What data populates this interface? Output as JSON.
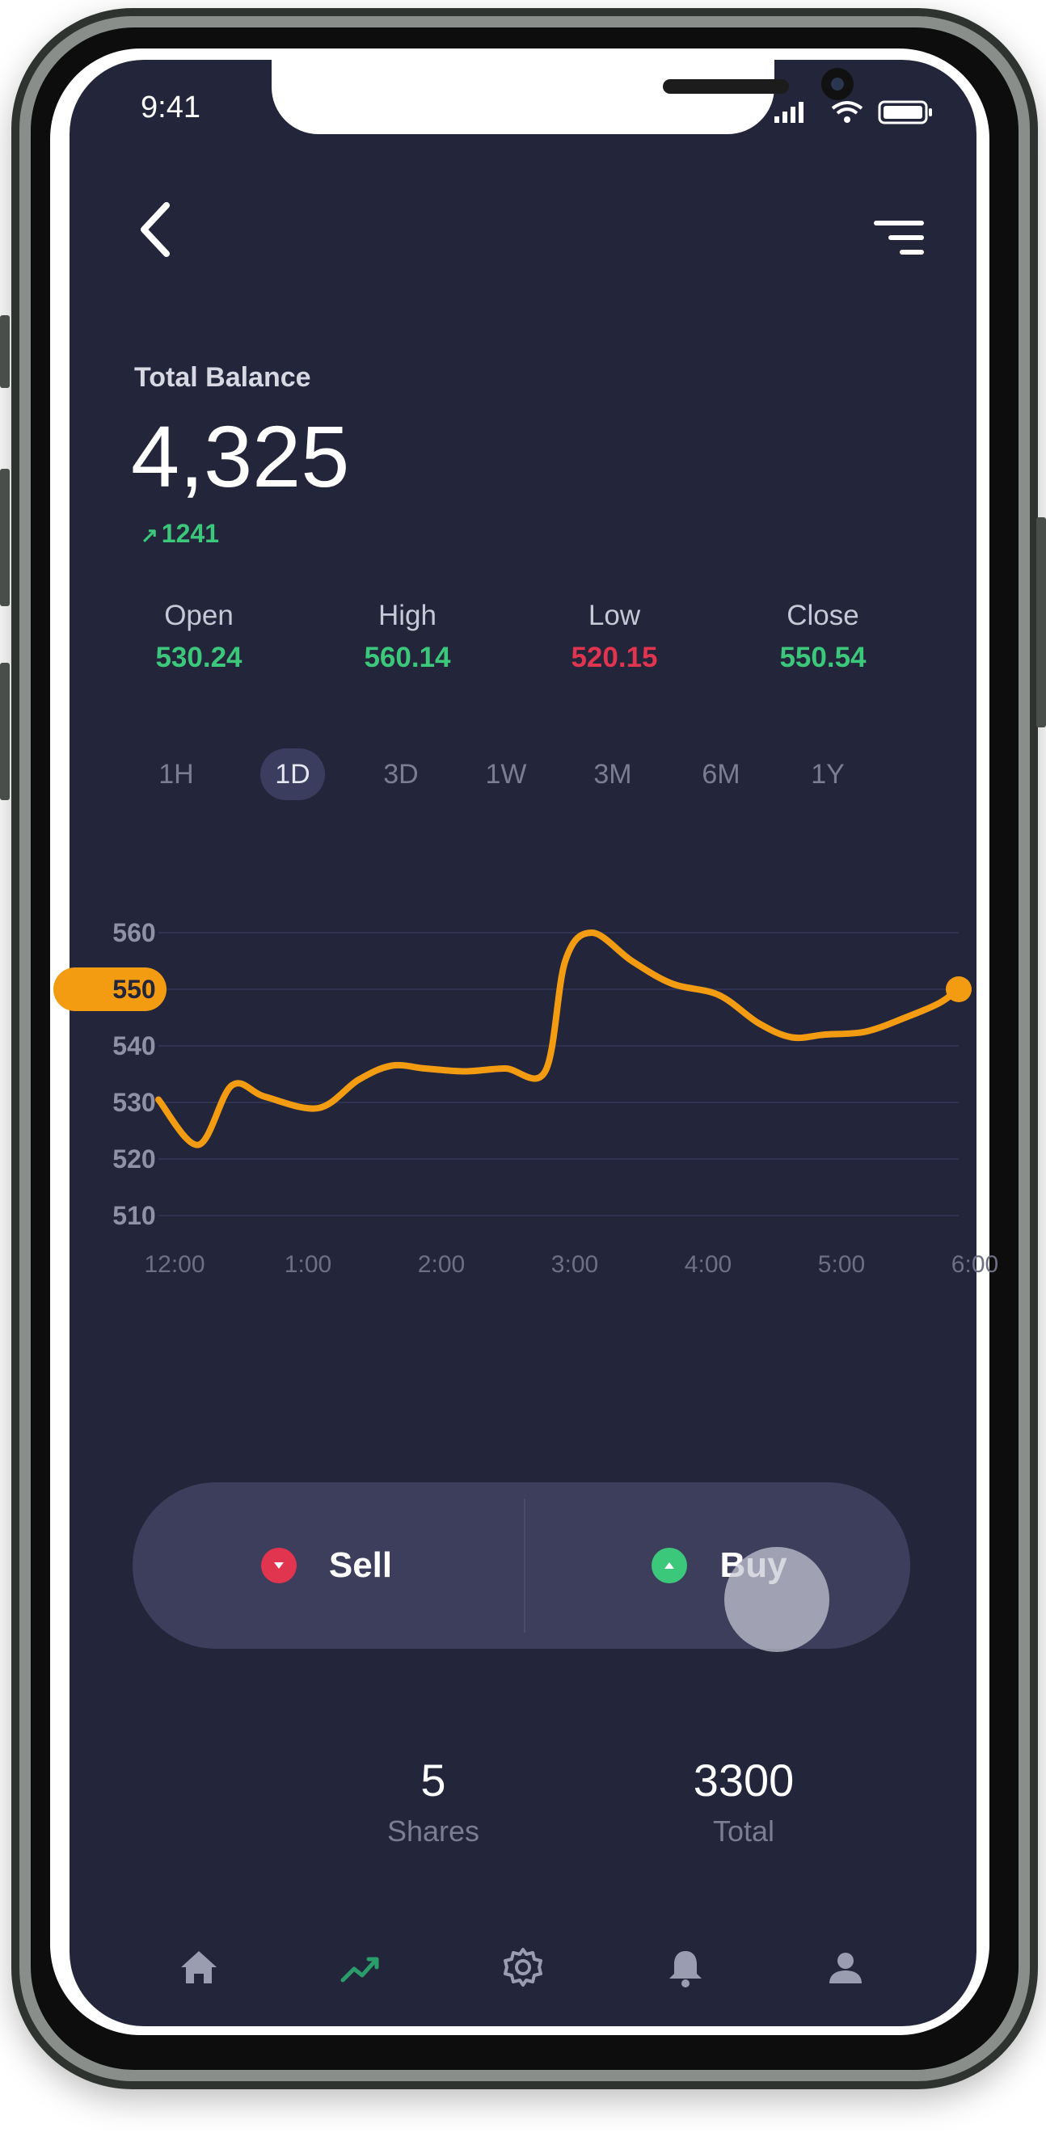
{
  "status_bar": {
    "time": "9:41"
  },
  "header": {
    "back_icon": "chevron-left-icon",
    "menu_icon": "filter-menu-icon"
  },
  "balance": {
    "label": "Total Balance",
    "value": "4,325",
    "change": "1241",
    "change_color": "#3cc87a"
  },
  "ohlc": [
    {
      "label": "Open",
      "value": "530.24",
      "color": "#3cc87a"
    },
    {
      "label": "High",
      "value": "560.14",
      "color": "#3cc87a"
    },
    {
      "label": "Low",
      "value": "520.15",
      "color": "#e0344f"
    },
    {
      "label": "Close",
      "value": "550.54",
      "color": "#3cc87a"
    }
  ],
  "timeframes": {
    "items": [
      "1H",
      "1D",
      "3D",
      "1W",
      "3M",
      "6M",
      "1Y"
    ],
    "active": "1D"
  },
  "chart_data": {
    "type": "line",
    "x": [
      "12:00",
      "1:00",
      "2:00",
      "3:00",
      "4:00",
      "5:00",
      "6:00"
    ],
    "y_ticks": [
      560,
      550,
      540,
      530,
      520,
      510
    ],
    "ylim": [
      510,
      560
    ],
    "current_marker": "550",
    "series": [
      {
        "color": "#f39c12",
        "points": [
          [
            0.0,
            530.5
          ],
          [
            0.3,
            522.5
          ],
          [
            0.55,
            533
          ],
          [
            0.8,
            531
          ],
          [
            1.2,
            529
          ],
          [
            1.5,
            534
          ],
          [
            1.75,
            536.5
          ],
          [
            2.0,
            536
          ],
          [
            2.3,
            535.5
          ],
          [
            2.6,
            536
          ],
          [
            2.9,
            535.5
          ],
          [
            3.05,
            555
          ],
          [
            3.25,
            560
          ],
          [
            3.55,
            555
          ],
          [
            3.85,
            551
          ],
          [
            4.2,
            549
          ],
          [
            4.5,
            544
          ],
          [
            4.75,
            541.5
          ],
          [
            5.0,
            542
          ],
          [
            5.3,
            542.5
          ],
          [
            5.6,
            545
          ],
          [
            5.85,
            547.5
          ],
          [
            6.0,
            550
          ]
        ]
      }
    ],
    "grid": true,
    "marker_color": "#f39c12"
  },
  "trade": {
    "sell_label": "Sell",
    "buy_label": "Buy",
    "sell_color": "#e0344f",
    "buy_color": "#3cc87a"
  },
  "stats": {
    "shares_value": "5",
    "shares_label": "Shares",
    "total_value": "3300",
    "total_label": "Total"
  },
  "nav": {
    "items": [
      {
        "icon": "home-icon",
        "active": false
      },
      {
        "icon": "trending-icon",
        "active": true
      },
      {
        "icon": "settings-icon",
        "active": false
      },
      {
        "icon": "bell-icon",
        "active": false
      },
      {
        "icon": "user-icon",
        "active": false
      }
    ],
    "active_color": "#2a9d6a",
    "inactive_color": "#9a9cb0"
  }
}
